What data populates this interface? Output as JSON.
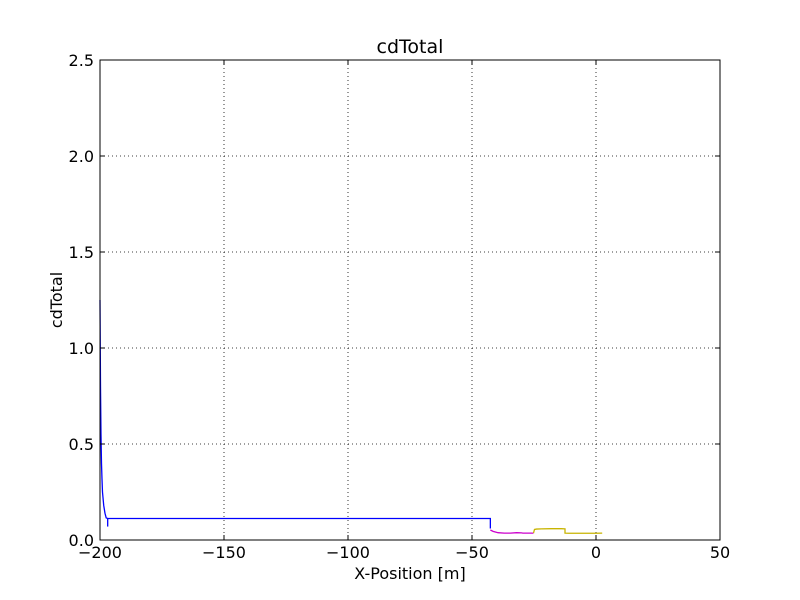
{
  "chart_data": {
    "type": "line",
    "title": "cdTotal",
    "xlabel": "X-Position [m]",
    "ylabel": "cdTotal",
    "xlim": [
      -200,
      50
    ],
    "ylim": [
      0.0,
      2.5
    ],
    "xticks": [
      -200,
      -150,
      -100,
      -50,
      0,
      50
    ],
    "xtick_labels": [
      "−200",
      "−150",
      "−100",
      "−50",
      "0",
      "50"
    ],
    "yticks": [
      0.0,
      0.5,
      1.0,
      1.5,
      2.0,
      2.5
    ],
    "ytick_labels": [
      "0.0",
      "0.5",
      "1.0",
      "1.5",
      "2.0",
      "2.5"
    ],
    "grid": true,
    "legend": "none",
    "series": [
      {
        "color": "#0000ff",
        "x": [
          -200,
          -199.8,
          -199.6,
          -199.4,
          -199.2,
          -199.0,
          -198.5,
          -198.0,
          -197.5,
          -196.9,
          -195.5,
          -150,
          -100,
          -50,
          -42.6,
          -42.6
        ],
        "y": [
          1.25,
          0.8,
          0.55,
          0.4,
          0.32,
          0.25,
          0.18,
          0.14,
          0.115,
          0.112,
          0.112,
          0.112,
          0.112,
          0.112,
          0.112,
          0.06
        ]
      },
      {
        "color": "#0000ff",
        "x": [
          -196.9,
          -196.9
        ],
        "y": [
          0.112,
          0.07
        ]
      },
      {
        "color": "#cc00cc",
        "x": [
          -42.6,
          -41.5,
          -39.5,
          -37.0,
          -34.5,
          -32.0,
          -30.0,
          -29.5,
          -27.5,
          -25.5,
          -25.2
        ],
        "y": [
          0.052,
          0.045,
          0.038,
          0.036,
          0.036,
          0.038,
          0.037,
          0.036,
          0.036,
          0.036,
          0.036
        ]
      },
      {
        "color": "#c8b400",
        "x": [
          -25.2,
          -24.8,
          -24.0,
          -22.0,
          -18.0,
          -14.0,
          -12.5,
          -12.5,
          -11.0,
          -8.0,
          -4.0,
          0.0,
          2.5
        ],
        "y": [
          0.036,
          0.055,
          0.057,
          0.058,
          0.059,
          0.059,
          0.058,
          0.036,
          0.035,
          0.035,
          0.035,
          0.035,
          0.036
        ]
      }
    ]
  }
}
